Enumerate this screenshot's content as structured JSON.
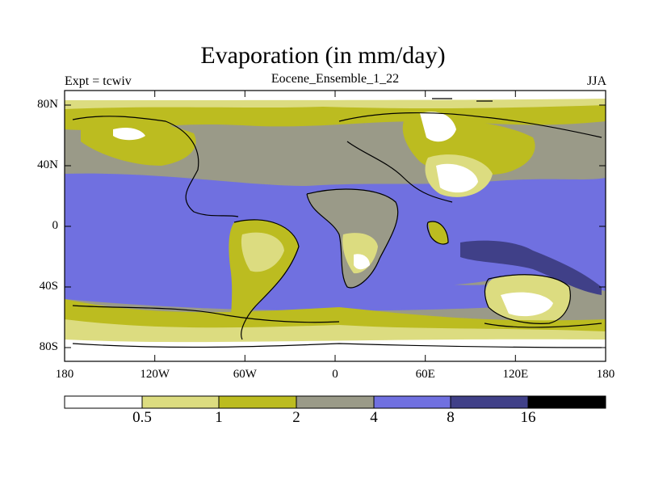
{
  "title": "Evaporation (in mm/day)",
  "left_label": "Expt = tcwiv",
  "center_label": "Eocene_Ensemble_1_22",
  "right_label": "JJA",
  "y_ticks": [
    "80N",
    "40N",
    "0",
    "40S",
    "80S"
  ],
  "x_ticks": [
    "180",
    "120W",
    "60W",
    "0",
    "60E",
    "120E",
    "180"
  ],
  "colorbar": {
    "labels": [
      "0.5",
      "1",
      "2",
      "4",
      "8",
      "16"
    ],
    "colors": [
      "#ffffff",
      "#dcdc80",
      "#bcbc20",
      "#9a9a88",
      "#7070e0",
      "#404088",
      "#000000"
    ]
  }
}
